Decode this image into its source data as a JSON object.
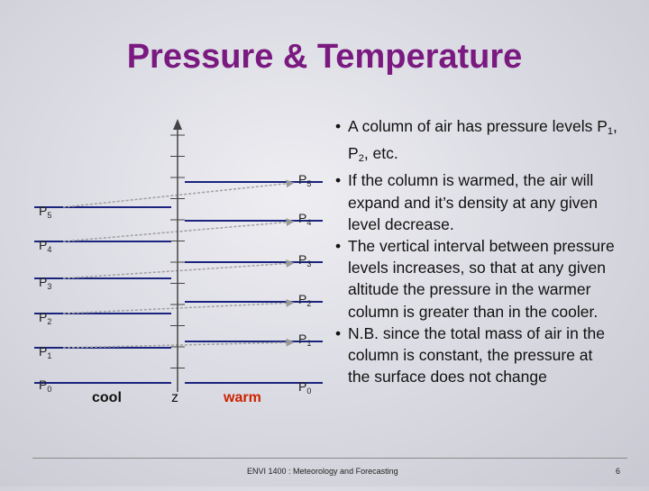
{
  "slide": {
    "title": "Pressure & Temperature",
    "footer": "ENVI 1400 : Meteorology and Forecasting",
    "page_number": "6"
  },
  "diagram": {
    "left_labels": [
      "P5",
      "P4",
      "P3",
      "P2",
      "P1",
      "P0"
    ],
    "right_labels": [
      "P5",
      "P4",
      "P3",
      "P2",
      "P1",
      "P0"
    ],
    "left_caption": "cool",
    "axis_caption": "z",
    "right_caption": "warm",
    "warm_color": "#cc2200"
  },
  "bullets": [
    {
      "parts": [
        "A column of air has pressure levels P",
        "1",
        ", P",
        "2",
        ", etc."
      ]
    },
    {
      "parts": [
        "If the column is warmed, the air will expand and it’s density at any given level decrease."
      ]
    },
    {
      "parts": [
        "The vertical interval between pressure levels increases, so that at any given altitude the pressure in the warmer column is greater than in the cooler."
      ]
    },
    {
      "parts": [
        "N.B. since the total mass of air in the column is constant, the pressure at the surface does not change"
      ]
    }
  ]
}
